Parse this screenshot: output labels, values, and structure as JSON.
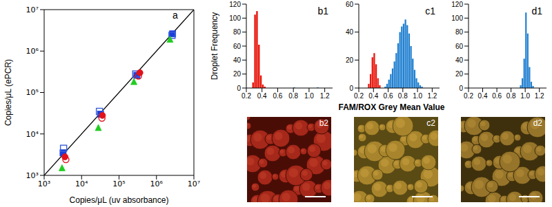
{
  "chart_data": [
    {
      "type": "scatter",
      "title": "a",
      "xlabel": "Copies/μL (uv absorbance)",
      "ylabel": "Copies/μL (ePCR)",
      "log": true,
      "xlim": [
        1000,
        10000000
      ],
      "ylim": [
        1000,
        10000000
      ],
      "xticks": [
        {
          "value": 1000,
          "label": "10³"
        },
        {
          "value": 10000,
          "label": "10⁴"
        },
        {
          "value": 100000,
          "label": "10⁵"
        },
        {
          "value": 1000000,
          "label": "10⁶"
        },
        {
          "value": 10000000,
          "label": "10⁷"
        }
      ],
      "yticks": [
        {
          "value": 1000,
          "label": "10³"
        },
        {
          "value": 10000,
          "label": "10⁴"
        },
        {
          "value": 100000,
          "label": "10⁵"
        },
        {
          "value": 1000000,
          "label": "10⁶"
        },
        {
          "value": 10000000,
          "label": "10⁷"
        }
      ],
      "series": [
        {
          "type": "line",
          "color": "#000000",
          "x": [
            1000,
            10000000
          ],
          "values": [
            1000,
            10000000
          ]
        },
        {
          "color": "#1a3fd8",
          "marker": "square",
          "x": [
            3200,
            32000,
            300000,
            2700000
          ],
          "values": [
            3500,
            30000,
            260000,
            2600000
          ]
        },
        {
          "color": "#3a5fd8",
          "marker": "square-open",
          "x": [
            3300,
            30000,
            280000,
            2600000
          ],
          "values": [
            4500,
            35000,
            280000,
            2400000
          ]
        },
        {
          "color": "#e0121b",
          "marker": "circle",
          "x": [
            3600,
            36000,
            360000
          ],
          "values": [
            2800,
            28000,
            300000
          ]
        },
        {
          "color": "#e0121b",
          "marker": "circle-open",
          "x": [
            3800,
            35000,
            330000
          ],
          "values": [
            2400,
            24000,
            250000
          ]
        },
        {
          "color": "#22cc22",
          "marker": "triangle",
          "x": [
            3000,
            28000,
            250000,
            2300000
          ],
          "values": [
            1500,
            14000,
            180000,
            1900000
          ]
        }
      ]
    },
    {
      "type": "histogram",
      "title": "b1",
      "ylabel": "Droplet Frequency",
      "xlim": [
        0.2,
        1.3
      ],
      "xticks": [
        0.2,
        0.4,
        0.6,
        0.8,
        {
          "value": 1,
          "label": "1.0"
        },
        1.2
      ],
      "ylim": [
        0,
        120
      ],
      "yticks": [
        0,
        20,
        40,
        60,
        80,
        100,
        120
      ],
      "bins": [
        0.2,
        0.225,
        0.25,
        0.275,
        0.3,
        0.325,
        0.35,
        0.375,
        0.4,
        0.425,
        0.45,
        0.475,
        0.5,
        0.525,
        0.55,
        0.575,
        0.6,
        0.625,
        0.65,
        0.675,
        0.7,
        0.725,
        0.75,
        0.775,
        0.8,
        0.825,
        0.85,
        0.875,
        0.9,
        0.925,
        0.95,
        0.975,
        1,
        1.025,
        1.05,
        1.075,
        1.1,
        1.125,
        1.15,
        1.175,
        1.2,
        1.225,
        1.25,
        1.275,
        1.3
      ],
      "series": [
        {
          "color": "#e8160c",
          "values": [
            0,
            0,
            0,
            8,
            105,
            110,
            62,
            18,
            5,
            2,
            0,
            0,
            0,
            0,
            0,
            0,
            0,
            0,
            0,
            0,
            0,
            0,
            0,
            0,
            0,
            0,
            0,
            0,
            0,
            0,
            0,
            0,
            0,
            0,
            0,
            0,
            0,
            0,
            0,
            0,
            0,
            0,
            0,
            0
          ]
        },
        {
          "color": "#1f7fd0",
          "values": [
            0,
            0,
            0,
            0,
            0,
            0,
            0,
            0,
            0,
            0,
            0,
            0,
            0,
            0,
            0,
            0,
            0,
            0,
            0,
            0,
            0,
            0,
            0,
            0,
            1,
            0,
            0,
            0,
            0,
            0,
            0,
            0,
            0,
            0,
            0,
            0,
            1,
            0,
            0,
            0,
            0,
            0,
            0,
            0
          ]
        }
      ]
    },
    {
      "type": "histogram",
      "title": "c1",
      "xlabel": "FAM/ROX Grey Mean Value",
      "xlim": [
        0.2,
        1.3
      ],
      "xticks": [
        0.2,
        0.4,
        0.6,
        0.8,
        {
          "value": 1,
          "label": "1.0"
        },
        1.2
      ],
      "ylim": [
        0,
        60
      ],
      "yticks": [
        0,
        20,
        40,
        60
      ],
      "bins": [
        0.2,
        0.225,
        0.25,
        0.275,
        0.3,
        0.325,
        0.35,
        0.375,
        0.4,
        0.425,
        0.45,
        0.475,
        0.5,
        0.525,
        0.55,
        0.575,
        0.6,
        0.625,
        0.65,
        0.675,
        0.7,
        0.725,
        0.75,
        0.775,
        0.8,
        0.825,
        0.85,
        0.875,
        0.9,
        0.925,
        0.95,
        0.975,
        1,
        1.025,
        1.05,
        1.075,
        1.1,
        1.125,
        1.15,
        1.175,
        1.2,
        1.225,
        1.25,
        1.275,
        1.3
      ],
      "series": [
        {
          "color": "#e8160c",
          "values": [
            0,
            0,
            0,
            0,
            0,
            3,
            10,
            22,
            25,
            17,
            7,
            2,
            0,
            0,
            0,
            0,
            0,
            0,
            0,
            0,
            0,
            0,
            0,
            0,
            0,
            0,
            0,
            0,
            0,
            0,
            0,
            0,
            0,
            0,
            0,
            0,
            0,
            0,
            0,
            0,
            0,
            0,
            0,
            0
          ]
        },
        {
          "color": "#1f7fd0",
          "values": [
            0,
            0,
            0,
            0,
            0,
            0,
            0,
            0,
            0,
            0,
            0,
            0,
            0,
            0,
            1,
            3,
            6,
            10,
            14,
            19,
            25,
            32,
            40,
            44,
            46,
            49,
            45,
            39,
            30,
            21,
            13,
            7,
            4,
            2,
            1,
            0,
            0,
            0,
            0,
            0,
            0,
            0,
            0,
            0
          ]
        }
      ]
    },
    {
      "type": "histogram",
      "title": "d1",
      "xlim": [
        0.2,
        1.3
      ],
      "xticks": [
        0.2,
        0.4,
        0.6,
        0.8,
        {
          "value": 1,
          "label": "1.0"
        },
        1.2
      ],
      "ylim": [
        0,
        120
      ],
      "yticks": [
        0,
        20,
        40,
        60,
        80,
        100,
        120
      ],
      "bins": [
        0.2,
        0.225,
        0.25,
        0.275,
        0.3,
        0.325,
        0.35,
        0.375,
        0.4,
        0.425,
        0.45,
        0.475,
        0.5,
        0.525,
        0.55,
        0.575,
        0.6,
        0.625,
        0.65,
        0.675,
        0.7,
        0.725,
        0.75,
        0.775,
        0.8,
        0.825,
        0.85,
        0.875,
        0.9,
        0.925,
        0.95,
        0.975,
        1,
        1.025,
        1.05,
        1.075,
        1.1,
        1.125,
        1.15,
        1.175,
        1.2,
        1.225,
        1.25,
        1.275,
        1.3
      ],
      "series": [
        {
          "color": "#1f7fd0",
          "values": [
            0,
            0,
            0,
            0,
            0,
            0,
            0,
            0,
            0,
            0,
            0,
            0,
            0,
            0,
            0,
            0,
            0,
            0,
            0,
            0,
            0,
            0,
            0,
            0,
            0,
            0,
            0,
            0,
            0,
            4,
            14,
            42,
            108,
            78,
            30,
            9,
            3,
            0,
            0,
            0,
            0,
            0,
            0,
            0
          ]
        }
      ]
    }
  ],
  "images": [
    {
      "label": "b2"
    },
    {
      "label": "c2"
    },
    {
      "label": "d2"
    }
  ]
}
